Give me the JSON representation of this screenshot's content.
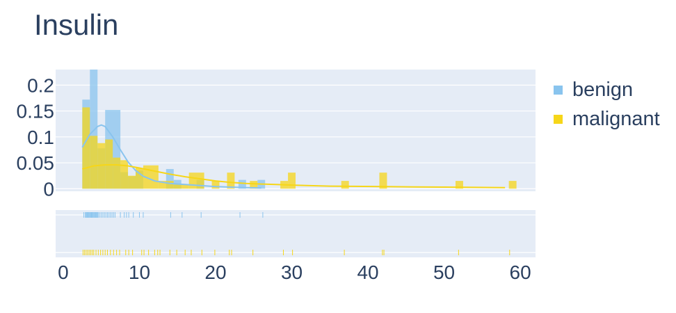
{
  "title": "Insulin",
  "chart_data": {
    "type": "histogram",
    "title": "Insulin",
    "xlabel": "",
    "ylabel": "",
    "xlim": [
      -1,
      62
    ],
    "ylim": [
      -0.005,
      0.23
    ],
    "x_ticks": [
      0,
      10,
      20,
      30,
      40,
      50,
      60
    ],
    "x_tick_labels": [
      "0",
      "10",
      "20",
      "30",
      "40",
      "50",
      "60"
    ],
    "y_ticks": [
      0,
      0.05,
      0.1,
      0.15,
      0.2
    ],
    "y_tick_labels": [
      "0",
      "0.05",
      "0.1",
      "0.15",
      "0.2"
    ],
    "grid": true,
    "legend": "right",
    "series": [
      {
        "name": "benign",
        "color": "#89c4ee",
        "bins": [
          {
            "x0": 2.5,
            "x1": 3.5,
            "y": 0.172
          },
          {
            "x0": 3.5,
            "x1": 4.5,
            "y": 0.23
          },
          {
            "x0": 4.5,
            "x1": 5.5,
            "y": 0.078
          },
          {
            "x0": 5.5,
            "x1": 7.5,
            "y": 0.152
          },
          {
            "x0": 7.5,
            "x1": 8.5,
            "y": 0.032
          },
          {
            "x0": 8.5,
            "x1": 9.5,
            "y": 0.024
          },
          {
            "x0": 9.5,
            "x1": 10.5,
            "y": 0.035
          },
          {
            "x0": 13.5,
            "x1": 14.5,
            "y": 0.038
          },
          {
            "x0": 14.5,
            "x1": 15.5,
            "y": 0.017
          },
          {
            "x0": 17.5,
            "x1": 18.5,
            "y": 0.017
          },
          {
            "x0": 23.0,
            "x1": 24.0,
            "y": 0.017
          },
          {
            "x0": 25.5,
            "x1": 26.5,
            "y": 0.017
          }
        ],
        "kde": {
          "x": [
            2.5,
            3.5,
            4.5,
            5.0,
            5.5,
            6.5,
            7.5,
            8.5,
            9.5,
            10.5,
            12,
            14,
            16,
            18,
            20,
            22,
            24,
            26
          ],
          "y": [
            0.08,
            0.105,
            0.12,
            0.123,
            0.12,
            0.1,
            0.075,
            0.052,
            0.035,
            0.024,
            0.015,
            0.01,
            0.008,
            0.006,
            0.004,
            0.003,
            0.002,
            0.0015
          ]
        },
        "rug": [
          2.7,
          2.9,
          3.0,
          3.1,
          3.2,
          3.3,
          3.4,
          3.5,
          3.6,
          3.7,
          3.8,
          3.9,
          4.0,
          4.1,
          4.2,
          4.3,
          4.4,
          4.5,
          4.6,
          4.8,
          5.0,
          5.2,
          5.4,
          5.6,
          5.8,
          6.0,
          6.2,
          6.4,
          6.6,
          6.8,
          7.5,
          8.0,
          8.3,
          8.6,
          9.2,
          10.0,
          10.5,
          14.1,
          15.6,
          18.1,
          23.2,
          26.2
        ]
      },
      {
        "name": "malignant",
        "color": "#f6d619",
        "bins": [
          {
            "x0": 2.5,
            "x1": 3.5,
            "y": 0.157
          },
          {
            "x0": 3.5,
            "x1": 4.5,
            "y": 0.102
          },
          {
            "x0": 4.5,
            "x1": 5.5,
            "y": 0.088
          },
          {
            "x0": 5.5,
            "x1": 6.5,
            "y": 0.095
          },
          {
            "x0": 6.5,
            "x1": 7.5,
            "y": 0.06
          },
          {
            "x0": 7.5,
            "x1": 8.5,
            "y": 0.055
          },
          {
            "x0": 8.5,
            "x1": 9.5,
            "y": 0.025
          },
          {
            "x0": 9.5,
            "x1": 10.5,
            "y": 0.04
          },
          {
            "x0": 10.5,
            "x1": 12.5,
            "y": 0.045
          },
          {
            "x0": 12.5,
            "x1": 14.5,
            "y": 0.015
          },
          {
            "x0": 14.5,
            "x1": 16.5,
            "y": 0.008
          },
          {
            "x0": 16.5,
            "x1": 18.5,
            "y": 0.031
          },
          {
            "x0": 19.5,
            "x1": 20.5,
            "y": 0.015
          },
          {
            "x0": 21.5,
            "x1": 22.5,
            "y": 0.031
          },
          {
            "x0": 24.5,
            "x1": 25.5,
            "y": 0.015
          },
          {
            "x0": 28.5,
            "x1": 29.5,
            "y": 0.015
          },
          {
            "x0": 29.5,
            "x1": 30.5,
            "y": 0.031
          },
          {
            "x0": 36.5,
            "x1": 37.5,
            "y": 0.015
          },
          {
            "x0": 41.5,
            "x1": 42.5,
            "y": 0.031
          },
          {
            "x0": 51.5,
            "x1": 52.5,
            "y": 0.015
          },
          {
            "x0": 58.5,
            "x1": 59.5,
            "y": 0.015
          }
        ],
        "kde": {
          "x": [
            2.5,
            4,
            5.5,
            7,
            8.5,
            10,
            12,
            14,
            16,
            18,
            20,
            22,
            24,
            26,
            28,
            30,
            32,
            35,
            38,
            42,
            46,
            50,
            54,
            58
          ],
          "y": [
            0.038,
            0.044,
            0.046,
            0.046,
            0.044,
            0.04,
            0.034,
            0.028,
            0.023,
            0.019,
            0.015,
            0.012,
            0.01,
            0.009,
            0.008,
            0.007,
            0.006,
            0.005,
            0.0045,
            0.004,
            0.0035,
            0.003,
            0.0025,
            0.002
          ]
        },
        "rug": [
          2.6,
          2.8,
          3.0,
          3.2,
          3.4,
          3.6,
          3.8,
          4.0,
          4.3,
          4.6,
          4.9,
          5.2,
          5.5,
          5.8,
          6.2,
          6.6,
          7.0,
          7.4,
          8.2,
          8.6,
          9.1,
          10.3,
          10.6,
          11.2,
          12.0,
          12.4,
          12.7,
          14.0,
          14.9,
          16.0,
          16.8,
          18.2,
          19.9,
          21.8,
          22.1,
          24.9,
          28.9,
          30.1,
          36.9,
          41.9,
          42.1,
          51.9,
          58.6
        ]
      }
    ]
  }
}
